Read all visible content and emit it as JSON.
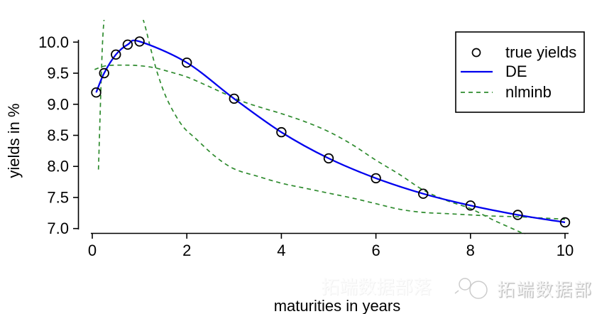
{
  "chart_data": {
    "type": "line",
    "title": "",
    "xlabel": "maturities in years",
    "ylabel": "yields in %",
    "xlim": [
      0,
      10
    ],
    "ylim": [
      7.0,
      10.0
    ],
    "grid": false,
    "legend_position": "top-right",
    "x_tick_labels": [
      "0",
      "2",
      "4",
      "6",
      "8",
      "10"
    ],
    "y_tick_labels": [
      "10.0",
      "9.5",
      "9.0",
      "8.5",
      "8.0",
      "7.5",
      "7.0"
    ],
    "legend": {
      "entries": [
        {
          "label": "true yields",
          "symbol": "open-circle",
          "color": "#000000"
        },
        {
          "label": "DE",
          "symbol": "solid-line",
          "color": "#0000ee"
        },
        {
          "label": "nlminb",
          "symbol": "dashed-line",
          "color": "#2e8b2e"
        }
      ]
    },
    "series": [
      {
        "name": "true yields",
        "type": "scatter",
        "marker": "open-circle",
        "color": "#000000",
        "x": [
          0.083,
          0.25,
          0.5,
          0.75,
          1,
          2,
          3,
          4,
          5,
          6,
          7,
          8,
          9,
          10
        ],
        "y": [
          9.19,
          9.5,
          9.8,
          9.96,
          10.01,
          9.67,
          9.09,
          8.55,
          8.13,
          7.81,
          7.56,
          7.37,
          7.22,
          7.1
        ]
      },
      {
        "name": "DE",
        "type": "line",
        "style": "solid",
        "color": "#0000ee",
        "x": [
          0.083,
          0.25,
          0.5,
          0.75,
          1,
          2,
          3,
          4,
          5,
          6,
          7,
          8,
          9,
          10
        ],
        "y": [
          9.19,
          9.5,
          9.8,
          9.96,
          10.01,
          9.67,
          9.09,
          8.55,
          8.13,
          7.81,
          7.56,
          7.37,
          7.22,
          7.1
        ]
      },
      {
        "name": "nlminb",
        "type": "line",
        "style": "dashed",
        "color": "#2e8b2e",
        "paths": [
          {
            "x": [
              0.13,
              0.16,
              0.19,
              0.22,
              0.26,
              0.32,
              0.9,
              1.0,
              1.12,
              1.25,
              1.4,
              1.6,
              1.9,
              2.2,
              2.6,
              3.0,
              3.5,
              4.0,
              4.5,
              5.0,
              5.5,
              6.0,
              6.5,
              7.0,
              7.5,
              8.0,
              8.5,
              9.0,
              9.5,
              10.0
            ],
            "y": [
              7.95,
              8.7,
              9.45,
              10.05,
              10.45,
              10.8,
              10.8,
              10.55,
              10.25,
              9.85,
              9.45,
              9.05,
              8.66,
              8.44,
              8.16,
              7.96,
              7.84,
              7.73,
              7.65,
              7.57,
              7.49,
              7.4,
              7.31,
              7.26,
              7.24,
              7.22,
              7.2,
              7.19,
              7.17,
              7.15
            ]
          },
          {
            "x": [
              0.05,
              0.3,
              0.7,
              1.0,
              1.3,
              1.6,
              2.0,
              2.4,
              2.8,
              3.2,
              3.6,
              4.0,
              4.5,
              5.0,
              5.5,
              6.0,
              6.5,
              7.0,
              7.5,
              8.0,
              8.5,
              9.0,
              9.15
            ],
            "y": [
              9.56,
              9.62,
              9.63,
              9.62,
              9.59,
              9.53,
              9.44,
              9.31,
              9.17,
              9.04,
              8.94,
              8.85,
              8.72,
              8.56,
              8.35,
              8.1,
              7.87,
              7.62,
              7.45,
              7.32,
              7.13,
              6.96,
              6.9
            ]
          }
        ]
      }
    ]
  },
  "watermarks": {
    "brand_text": "拓端数据部落",
    "faint_text": "拓端数据部落"
  }
}
